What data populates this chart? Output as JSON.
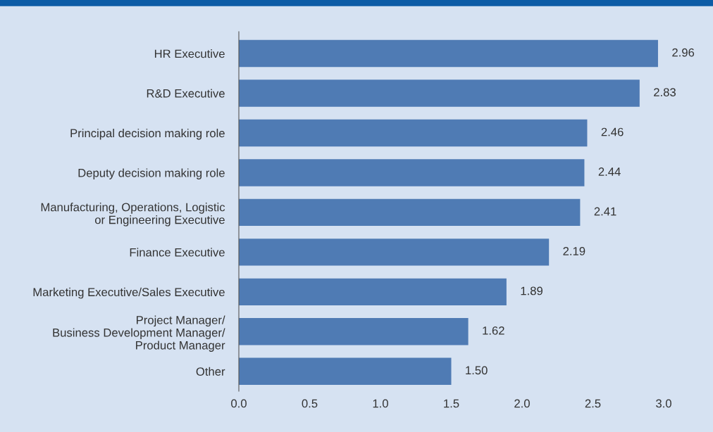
{
  "chart_data": {
    "type": "bar",
    "orientation": "horizontal",
    "categories": [
      "HR Executive",
      "R&D Executive",
      "Principal decision making role",
      "Deputy decision making role",
      "Manufacturing, Operations, Logistic\nor Engineering Executive",
      "Finance Executive",
      "Marketing Executive/Sales Executive",
      "Project Manager/\nBusiness Development Manager/\nProduct Manager",
      "Other"
    ],
    "values": [
      2.96,
      2.83,
      2.46,
      2.44,
      2.41,
      2.19,
      1.89,
      1.62,
      1.5
    ],
    "value_labels": [
      "2.96",
      "2.83",
      "2.46",
      "2.44",
      "2.41",
      "2.19",
      "1.89",
      "1.62",
      "1.50"
    ],
    "color": "#4f7bb4",
    "xlim": [
      0,
      3
    ],
    "xticks": [
      {
        "value": 0,
        "label": "0.0"
      },
      {
        "value": 0.5,
        "label": "0.5"
      },
      {
        "value": 1,
        "label": "1.0"
      },
      {
        "value": 1.5,
        "label": "1.5"
      },
      {
        "value": 2,
        "label": "2.0"
      },
      {
        "value": 2.5,
        "label": "2.5"
      },
      {
        "value": 3,
        "label": "3.0"
      }
    ],
    "grid": false,
    "legend": false
  }
}
